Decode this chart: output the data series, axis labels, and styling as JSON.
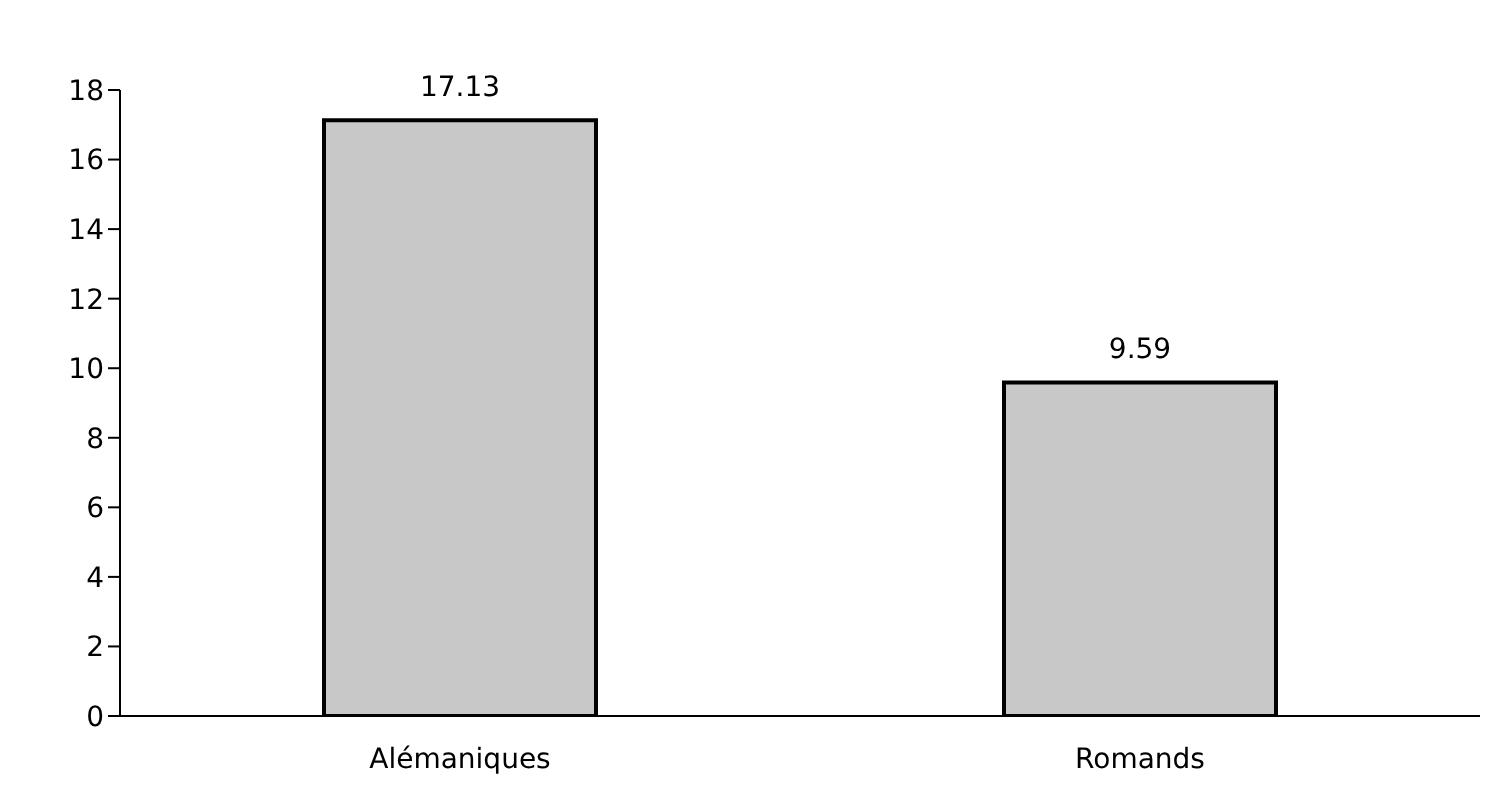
{
  "chart_data": {
    "type": "bar",
    "categories": [
      "Alémaniques",
      "Romands"
    ],
    "values": [
      17.13,
      9.59
    ],
    "color": "#c8c8c8",
    "ylim": [
      0,
      18
    ],
    "yticks": [
      0,
      2,
      4,
      6,
      8,
      10,
      12,
      14,
      16,
      18
    ],
    "grid": false,
    "legend": false,
    "data_labels": true
  }
}
